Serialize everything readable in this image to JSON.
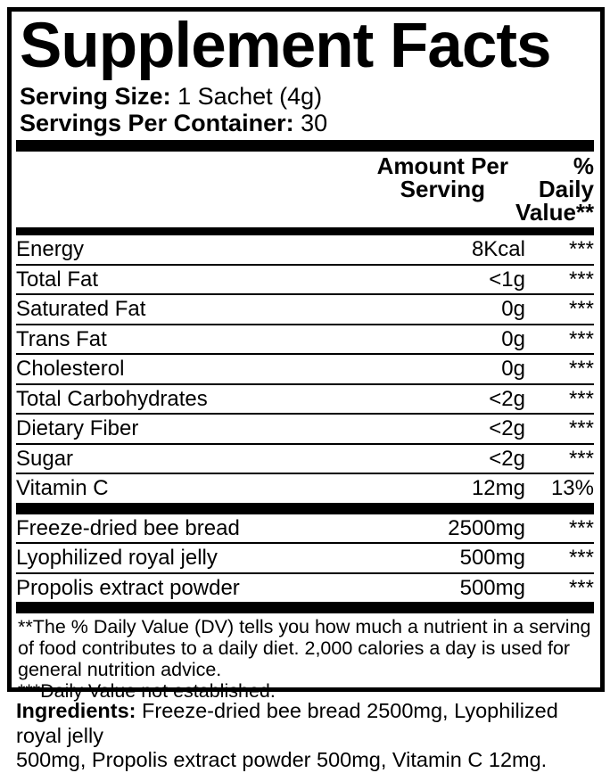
{
  "title": "Supplement Facts",
  "serving": {
    "size_label": "Serving Size:",
    "size_value": " 1 Sachet (4g)",
    "container_label": "Servings Per Container:",
    "container_value": " 30"
  },
  "header": {
    "amount_line1": "Amount Per",
    "amount_line2": "Serving",
    "dv_line1": "% Daily",
    "dv_line2": "Value**"
  },
  "nutrients": [
    {
      "label": "Energy",
      "amount": "8Kcal",
      "dv": "***"
    },
    {
      "label": "Total Fat",
      "amount": "<1g",
      "dv": "***"
    },
    {
      "label": "Saturated Fat",
      "amount": "0g",
      "dv": "***"
    },
    {
      "label": "Trans Fat",
      "amount": "0g",
      "dv": "***"
    },
    {
      "label": "Cholesterol",
      "amount": "0g",
      "dv": "***"
    },
    {
      "label": "Total Carbohydrates",
      "amount": "<2g",
      "dv": "***"
    },
    {
      "label": "Dietary Fiber",
      "amount": "<2g",
      "dv": "***"
    },
    {
      "label": "Sugar",
      "amount": "<2g",
      "dv": "***"
    },
    {
      "label": "Vitamin C",
      "amount": "12mg",
      "dv": "13%"
    }
  ],
  "blend": [
    {
      "label": "Freeze-dried bee bread",
      "amount": "2500mg",
      "dv": "***"
    },
    {
      "label": "Lyophilized royal jelly",
      "amount": "500mg",
      "dv": "***"
    },
    {
      "label": "Propolis extract powder",
      "amount": "500mg",
      "dv": "***"
    }
  ],
  "footnote": "**The % Daily Value (DV) tells you how much a nutrient in a serving\nof food contributes to a daily diet. 2,000 calories a day is used for\ngeneral nutrition advice.\n***Daily Value not established.",
  "ingredients": {
    "label": "Ingredients:",
    "text": " Freeze-dried bee bread 2500mg, Lyophilized royal jelly\n500mg, Propolis extract powder 500mg, Vitamin C 12mg."
  },
  "colors": {
    "text": "#000000",
    "background": "#ffffff"
  }
}
